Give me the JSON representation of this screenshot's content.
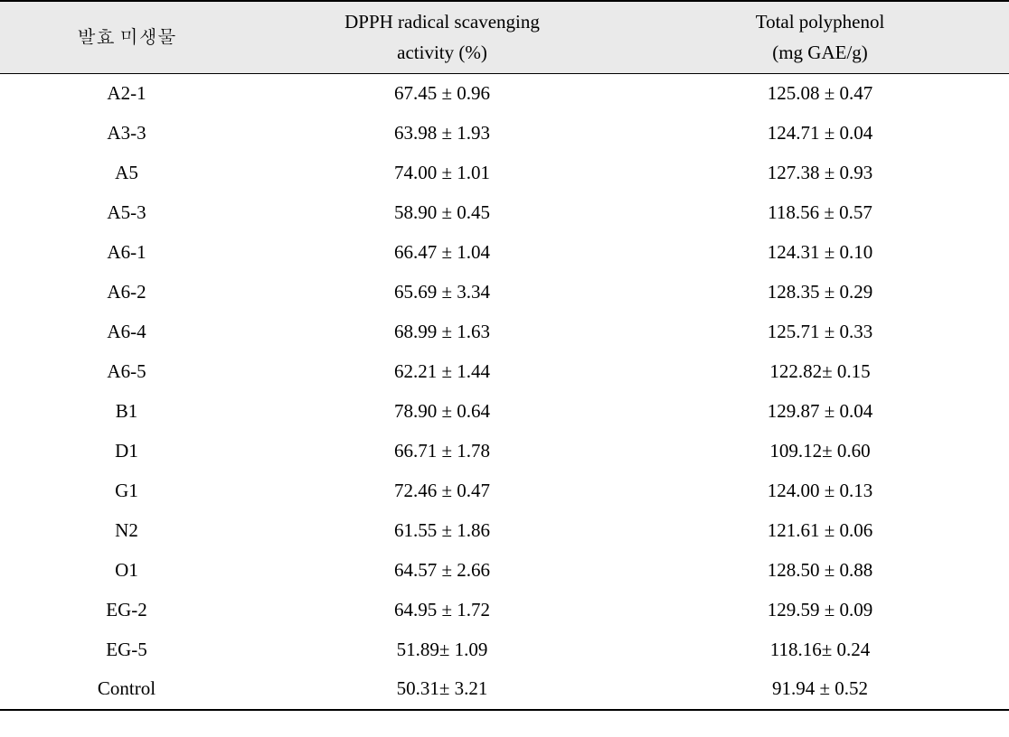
{
  "headers": {
    "col1": "발효 미생물",
    "col2_line1": "DPPH radical scavenging",
    "col2_line2": "activity (%)",
    "col3_line1": "Total polyphenol",
    "col3_line2": "(mg GAE/g)"
  },
  "rows": [
    {
      "name": "A2-1",
      "dpph": "67.45 ± 0.96",
      "poly": "125.08 ± 0.47"
    },
    {
      "name": "A3-3",
      "dpph": "63.98 ± 1.93",
      "poly": "124.71 ± 0.04"
    },
    {
      "name": "A5",
      "dpph": "74.00 ± 1.01",
      "poly": "127.38 ± 0.93"
    },
    {
      "name": "A5-3",
      "dpph": "58.90 ± 0.45",
      "poly": "118.56 ± 0.57"
    },
    {
      "name": "A6-1",
      "dpph": "66.47 ± 1.04",
      "poly": "124.31 ± 0.10"
    },
    {
      "name": "A6-2",
      "dpph": "65.69 ± 3.34",
      "poly": "128.35 ± 0.29"
    },
    {
      "name": "A6-4",
      "dpph": "68.99 ± 1.63",
      "poly": "125.71 ± 0.33"
    },
    {
      "name": "A6-5",
      "dpph": "62.21 ± 1.44",
      "poly": "122.82± 0.15"
    },
    {
      "name": "B1",
      "dpph": "78.90 ± 0.64",
      "poly": "129.87 ± 0.04"
    },
    {
      "name": "D1",
      "dpph": "66.71 ± 1.78",
      "poly": "109.12±  0.60"
    },
    {
      "name": "G1",
      "dpph": "72.46 ± 0.47",
      "poly": "124.00 ± 0.13"
    },
    {
      "name": "N2",
      "dpph": "61.55 ± 1.86",
      "poly": "121.61 ± 0.06"
    },
    {
      "name": "O1",
      "dpph": "64.57 ± 2.66",
      "poly": "128.50 ± 0.88"
    },
    {
      "name": "EG-2",
      "dpph": "64.95 ± 1.72",
      "poly": "129.59 ± 0.09"
    },
    {
      "name": "EG-5",
      "dpph": "51.89± 1.09",
      "poly": "118.16±  0.24"
    },
    {
      "name": "Control",
      "dpph": "50.31± 3.21",
      "poly": "91.94 ± 0.52"
    }
  ]
}
